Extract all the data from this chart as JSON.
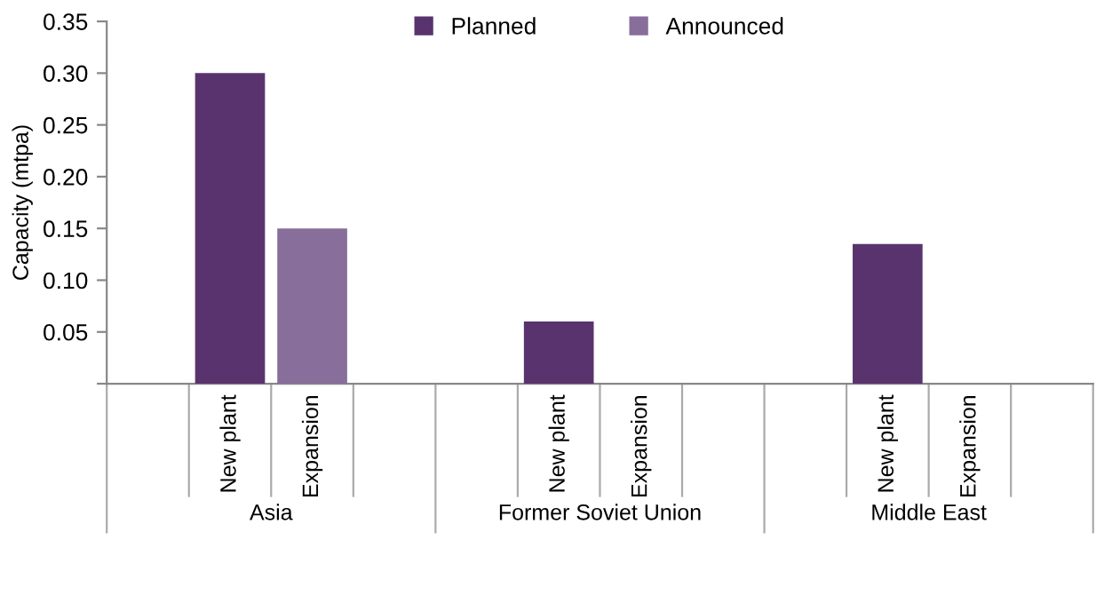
{
  "chart_data": {
    "type": "bar",
    "ylabel": "Capacity (mtpa)",
    "categories": [
      null,
      "New plant",
      "Expansion",
      null,
      null,
      "New plant",
      "Expansion",
      null,
      null,
      "New plant",
      "Expansion",
      null
    ],
    "annotations": [
      "Asia",
      "Former Soviet Union",
      "Middle East"
    ],
    "series": [
      {
        "name": "Planned",
        "color": "#59336e",
        "values": [
          null,
          0.3,
          null,
          null,
          null,
          0.06,
          null,
          null,
          null,
          0.135,
          null,
          null
        ]
      },
      {
        "name": "Announced",
        "color": "#886e9b",
        "values": [
          null,
          null,
          0.15,
          null,
          null,
          null,
          null,
          null,
          null,
          null,
          null,
          null
        ]
      }
    ],
    "ylim": [
      0,
      0.35
    ],
    "yticks": [
      {
        "value": 0,
        "label": null
      },
      0.05,
      {
        "value": 0.1,
        "label": "0.10"
      },
      0.15,
      {
        "value": 0.2,
        "label": "0.20"
      },
      0.25,
      {
        "value": 0.3,
        "label": "0.30"
      },
      0.35
    ],
    "grid": false,
    "legend": "top"
  }
}
